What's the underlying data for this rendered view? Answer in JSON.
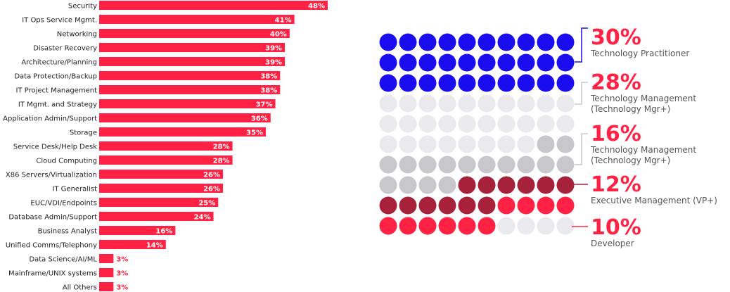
{
  "colors": {
    "bar": "#ff2244",
    "bar_value_text": "#ffffff",
    "bar_value_text_outside": "#ff2244",
    "practitioner": "#1a0df0",
    "light": "#e9e9ee",
    "mid": "#c8c8cc",
    "exec": "#a8213b",
    "developer": "#ff2244",
    "pct_text": "#ff2244",
    "connector": "#1a0df0",
    "connector_grey": "#c8c8cc"
  },
  "chart_data": [
    {
      "type": "bar",
      "orientation": "horizontal",
      "categories": [
        "Security",
        "IT Ops Service Mgmt.",
        "Networking",
        "Disaster Recovery",
        "Architecture/Planning",
        "Data Protection/Backup",
        "IT Project Management",
        "IT Mgmt. and Strategy",
        "Application Admin/Support",
        "Storage",
        "Service Desk/Help Desk",
        "Cloud Computing",
        "X86 Servers/Virtualization",
        "IT Generalist",
        "EUC/VDI/Endpoints",
        "Database Admin/Support",
        "Business Analyst",
        "Unified Comms/Telephony",
        "Data Science/AI/ML",
        "Mainframe/UNIX systems",
        "All Others"
      ],
      "values": [
        48,
        41,
        40,
        39,
        39,
        38,
        38,
        37,
        36,
        35,
        28,
        28,
        26,
        26,
        25,
        24,
        16,
        14,
        3,
        3,
        3
      ],
      "value_labels": [
        "48%",
        "41%",
        "40%",
        "39%",
        "39%",
        "38%",
        "38%",
        "37%",
        "36%",
        "35%",
        "28%",
        "28%",
        "26%",
        "26%",
        "25%",
        "24%",
        "16%",
        "14%",
        "3%",
        "3%",
        "3%"
      ],
      "xlim": [
        0,
        48
      ],
      "grid": false
    },
    {
      "type": "waffle",
      "total_cells": 100,
      "columns": 10,
      "series": [
        {
          "name": "Technology Practitioner",
          "label": "30%",
          "value": 30,
          "color_key": "practitioner",
          "sub": ""
        },
        {
          "name": "Technology Management",
          "label": "28%",
          "value": 28,
          "color_key": "light",
          "sub": "(Technology Mgr+)"
        },
        {
          "name": "Technology Management",
          "label": "16%",
          "value": 16,
          "color_key": "mid",
          "sub": "(Technology Mgr+)"
        },
        {
          "name": "Executive Management (VP+)",
          "label": "12%",
          "value": 12,
          "color_key": "exec",
          "sub": ""
        },
        {
          "name": "Developer",
          "label": "10%",
          "value": 10,
          "color_key": "developer",
          "sub": ""
        }
      ],
      "legend_position": "right"
    }
  ]
}
